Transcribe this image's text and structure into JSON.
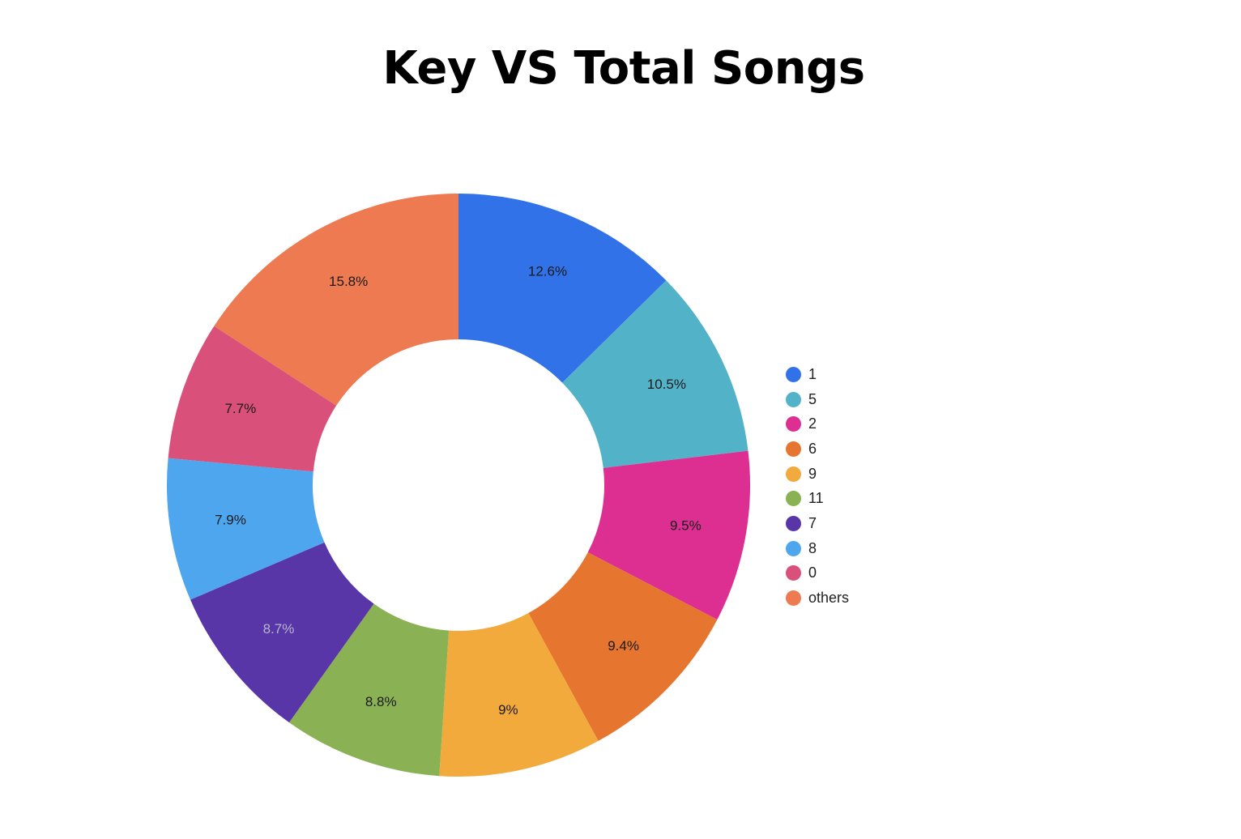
{
  "chart_data": {
    "type": "pie",
    "title": "Key VS Total Songs",
    "donut": true,
    "legend_position": "right",
    "slices": [
      {
        "name": "1",
        "value": 12.6,
        "label": "12.6%",
        "color": "#3172E8",
        "label_color": "#1a1a1a"
      },
      {
        "name": "5",
        "value": 10.5,
        "label": "10.5%",
        "color": "#52B2C8",
        "label_color": "#1a1a1a"
      },
      {
        "name": "2",
        "value": 9.5,
        "label": "9.5%",
        "color": "#DC2F91",
        "label_color": "#1a1a1a"
      },
      {
        "name": "6",
        "value": 9.4,
        "label": "9.4%",
        "color": "#E5752F",
        "label_color": "#1a1a1a"
      },
      {
        "name": "9",
        "value": 9.0,
        "label": "9%",
        "color": "#F2AA3C",
        "label_color": "#1a1a1a"
      },
      {
        "name": "11",
        "value": 8.8,
        "label": "8.8%",
        "color": "#8AB153",
        "label_color": "#1a1a1a"
      },
      {
        "name": "7",
        "value": 8.7,
        "label": "8.7%",
        "color": "#5836A8",
        "label_color": "#b8b4cc"
      },
      {
        "name": "8",
        "value": 7.9,
        "label": "7.9%",
        "color": "#4DA6EE",
        "label_color": "#1a1a1a"
      },
      {
        "name": "0",
        "value": 7.7,
        "label": "7.7%",
        "color": "#D9507A",
        "label_color": "#1a1a1a"
      },
      {
        "name": "others",
        "value": 15.8,
        "label": "15.8%",
        "color": "#EE7A52",
        "label_color": "#1a1a1a"
      }
    ]
  }
}
